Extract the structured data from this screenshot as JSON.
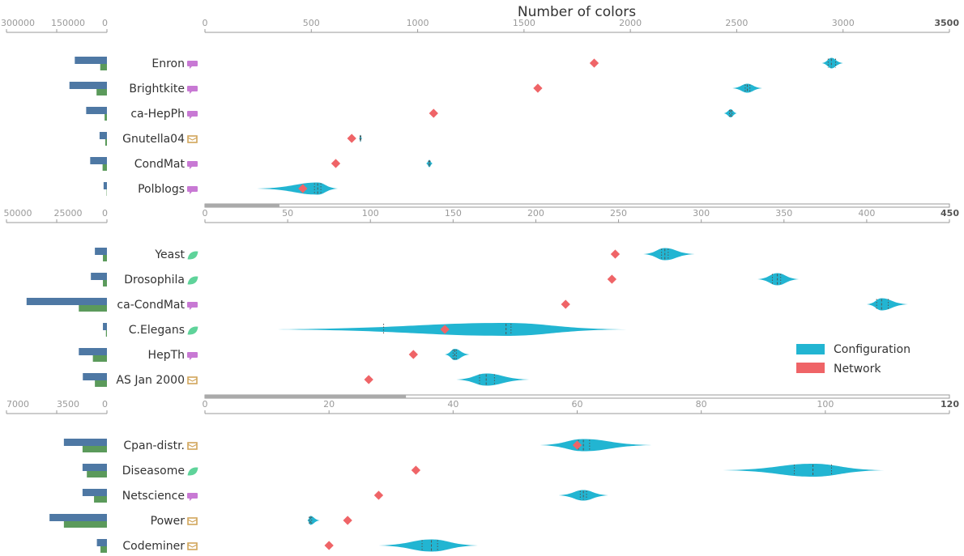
{
  "chart_data": {
    "type": "violin",
    "title": "Number of colors",
    "colors": {
      "configuration": "#22b5d2",
      "network": "#ef6467",
      "bar_blue": "#4e78a4",
      "bar_green": "#5b9a5b",
      "axis": "#9a9a9a",
      "scroll": "#aaaaaa"
    },
    "legend": [
      {
        "label": "Configuration",
        "color": "#22b5d2"
      },
      {
        "label": "Network",
        "color": "#ef6467"
      }
    ],
    "legend_position": "right",
    "panels": [
      {
        "xlim": [
          0,
          3500
        ],
        "ticks": [
          "0",
          "500",
          "1000",
          "1500",
          "2000",
          "2500",
          "3000",
          "3500"
        ],
        "bar_ticks": [
          "300000",
          "150000",
          "0"
        ],
        "bar_max": 300000,
        "scroll_fraction": 0.1,
        "datasets": [
          {
            "name": "Enron",
            "icon": "chat-icon",
            "icon_color": "#c879d4",
            "bar_blue": 96000,
            "bar_green": 20000,
            "network": 1830,
            "config": {
              "min": 2900,
              "max": 3000,
              "q1": 2930,
              "median": 2945,
              "q3": 2965,
              "width": 12
            }
          },
          {
            "name": "Brightkite",
            "icon": "chat-icon",
            "icon_color": "#c879d4",
            "bar_blue": 112000,
            "bar_green": 31000,
            "network": 1565,
            "config": {
              "min": 2480,
              "max": 2620,
              "q1": 2540,
              "median": 2550,
              "q3": 2562,
              "width": 10
            }
          },
          {
            "name": "ca-HepPh",
            "icon": "chat-icon",
            "icon_color": "#c879d4",
            "bar_blue": 62000,
            "bar_green": 7000,
            "network": 1075,
            "config": {
              "min": 2440,
              "max": 2500,
              "q1": 2466,
              "median": 2472,
              "q3": 2478,
              "width": 9
            }
          },
          {
            "name": "Gnutella04",
            "icon": "envelope-icon",
            "icon_color": "#d1a55a",
            "bar_blue": 22000,
            "bar_green": 5000,
            "network": 690,
            "config": {
              "min": 725,
              "max": 738,
              "q1": 729,
              "median": 731,
              "q3": 733,
              "width": 8
            }
          },
          {
            "name": "CondMat",
            "icon": "chat-icon",
            "icon_color": "#c879d4",
            "bar_blue": 50000,
            "bar_green": 13000,
            "network": 615,
            "config": {
              "min": 1040,
              "max": 1070,
              "q1": 1052,
              "median": 1055,
              "q3": 1058,
              "width": 8
            }
          },
          {
            "name": "Polblogs",
            "icon": "chat-icon",
            "icon_color": "#c879d4",
            "bar_blue": 10000,
            "bar_green": 1000,
            "network": 460,
            "config": {
              "min": 245,
              "max": 625,
              "q1": 515,
              "median": 530,
              "q3": 545,
              "width": 14
            }
          }
        ]
      },
      {
        "xlim": [
          0,
          450
        ],
        "ticks": [
          "0",
          "50",
          "100",
          "150",
          "200",
          "250",
          "300",
          "350",
          "400",
          "450"
        ],
        "bar_ticks": [
          "50000",
          "25000",
          "0"
        ],
        "bar_max": 50000,
        "scroll_fraction": 0.27,
        "datasets": [
          {
            "name": "Yeast",
            "icon": "leaf-icon",
            "icon_color": "#5fd39a",
            "bar_blue": 6000,
            "bar_green": 2000,
            "network": 248,
            "config": {
              "min": 265,
              "max": 296,
              "q1": 276,
              "median": 278,
              "q3": 280,
              "width": 14
            }
          },
          {
            "name": "Drosophila",
            "icon": "leaf-icon",
            "icon_color": "#5fd39a",
            "bar_blue": 8000,
            "bar_green": 2000,
            "network": 246,
            "config": {
              "min": 334,
              "max": 359,
              "q1": 343,
              "median": 346,
              "q3": 348,
              "width": 14
            }
          },
          {
            "name": "ca-CondMat",
            "icon": "chat-icon",
            "icon_color": "#c879d4",
            "bar_blue": 40000,
            "bar_green": 14000,
            "network": 218,
            "config": {
              "min": 400,
              "max": 425,
              "q1": 406,
              "median": 409,
              "q3": 413,
              "width": 14
            }
          },
          {
            "name": "C.Elegans",
            "icon": "leaf-icon",
            "icon_color": "#5fd39a",
            "bar_blue": 2000,
            "bar_green": 500,
            "network": 145,
            "config": {
              "min": 37,
              "max": 255,
              "q1": 108,
              "median": 182,
              "q3": 185,
              "width": 15
            }
          },
          {
            "name": "HepTh",
            "icon": "chat-icon",
            "icon_color": "#c879d4",
            "bar_blue": 14000,
            "bar_green": 7000,
            "network": 126,
            "config": {
              "min": 145,
              "max": 160,
              "q1": 150,
              "median": 151,
              "q3": 152,
              "width": 13
            }
          },
          {
            "name": "AS Jan 2000",
            "icon": "envelope-icon",
            "icon_color": "#d1a55a",
            "bar_blue": 12000,
            "bar_green": 6000,
            "network": 99,
            "config": {
              "min": 152,
              "max": 196,
              "q1": 166,
              "median": 170,
              "q3": 175,
              "width": 14
            }
          }
        ]
      },
      {
        "xlim": [
          0,
          120
        ],
        "ticks": [
          "0",
          "20",
          "40",
          "60",
          "80",
          "100",
          "120"
        ],
        "bar_ticks": [
          "7000",
          "3500",
          "0"
        ],
        "bar_max": 7000,
        "scroll_fraction": 0,
        "datasets": [
          {
            "name": "Cpan-distr.",
            "icon": "envelope-icon",
            "icon_color": "#d1a55a",
            "bar_blue": 3000,
            "bar_green": 1700,
            "network": 60,
            "config": {
              "min": 54,
              "max": 72,
              "q1": 60.2,
              "median": 61,
              "q3": 62,
              "width": 14
            }
          },
          {
            "name": "Diseasome",
            "icon": "leaf-icon",
            "icon_color": "#5fd39a",
            "bar_blue": 1700,
            "bar_green": 1400,
            "network": 34,
            "config": {
              "min": 83.5,
              "max": 109.5,
              "q1": 95,
              "median": 98,
              "q3": 101,
              "width": 15
            }
          },
          {
            "name": "Netscience",
            "icon": "chat-icon",
            "icon_color": "#c879d4",
            "bar_blue": 1700,
            "bar_green": 900,
            "network": 28,
            "config": {
              "min": 57,
              "max": 65,
              "q1": 60.5,
              "median": 61,
              "q3": 61.5,
              "width": 12
            }
          },
          {
            "name": "Power",
            "icon": "envelope-icon",
            "icon_color": "#d1a55a",
            "bar_blue": 4000,
            "bar_green": 3000,
            "network": 23,
            "config": {
              "min": 16.5,
              "max": 18.5,
              "q1": 16.8,
              "median": 17,
              "q3": 17.2,
              "width": 10
            }
          },
          {
            "name": "Codeminer",
            "icon": "envelope-icon",
            "icon_color": "#d1a55a",
            "bar_blue": 700,
            "bar_green": 450,
            "network": 20,
            "config": {
              "min": 28,
              "max": 44,
              "q1": 35,
              "median": 36.5,
              "q3": 37.5,
              "width": 14
            }
          }
        ]
      }
    ]
  }
}
